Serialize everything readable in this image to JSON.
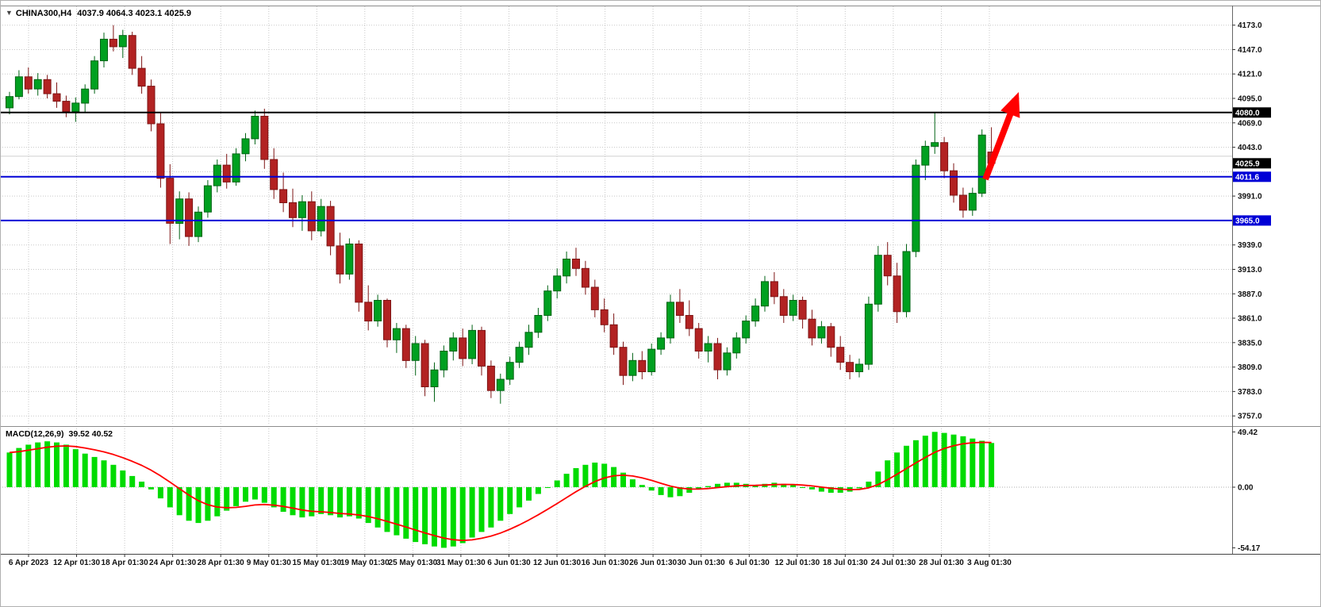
{
  "header": {
    "symbol_timeframe": "CHINA300,H4",
    "ohlc_text": "4037.9 4064.3 4023.1 4025.9"
  },
  "macd_header": {
    "name": "MACD(12,26,9)",
    "values": "39.52 40.52"
  },
  "chart_data": {
    "type": "candlestick",
    "symbol": "CHINA300",
    "timeframe": "H4",
    "title": "CHINA300,H4",
    "current_bar": {
      "open": 4037.9,
      "high": 4064.3,
      "low": 4023.1,
      "close": 4025.9
    },
    "price_axis": {
      "min": 3757.0,
      "max": 4173.0,
      "step": 26.0,
      "visible_labels": [
        [
          4173.0,
          "4173.0"
        ],
        [
          4147.0,
          "4147.0"
        ],
        [
          4121.0,
          "4121.0"
        ],
        [
          4095.0,
          "4095.0"
        ],
        [
          4069.0,
          "4069.0"
        ],
        [
          4043.0,
          "4043.0"
        ],
        [
          3991.0,
          "3991.0"
        ],
        [
          3939.0,
          "3939.0"
        ],
        [
          3913.0,
          "3913.0"
        ],
        [
          3887.0,
          "3887.0"
        ],
        [
          3861.0,
          "3861.0"
        ],
        [
          3835.0,
          "3835.0"
        ],
        [
          3809.0,
          "3809.0"
        ],
        [
          3783.0,
          "3783.0"
        ],
        [
          3757.0,
          "3757.0"
        ]
      ]
    },
    "time_labels": [
      "6 Apr 2023",
      "12 Apr 01:30",
      "18 Apr 01:30",
      "24 Apr 01:30",
      "28 Apr 01:30",
      "9 May 01:30",
      "15 May 01:30",
      "19 May 01:30",
      "25 May 01:30",
      "31 May 01:30",
      "6 Jun 01:30",
      "12 Jun 01:30",
      "16 Jun 01:30",
      "26 Jun 01:30",
      "30 Jun 01:30",
      "6 Jul 01:30",
      "12 Jul 01:30",
      "18 Jul 01:30",
      "24 Jul 01:30",
      "28 Jul 01:30",
      "3 Aug 01:30"
    ],
    "candles": [
      [
        4085,
        4102,
        4078,
        4097
      ],
      [
        4097,
        4125,
        4094,
        4118
      ],
      [
        4118,
        4128,
        4100,
        4105
      ],
      [
        4105,
        4122,
        4098,
        4115
      ],
      [
        4115,
        4120,
        4095,
        4100
      ],
      [
        4100,
        4112,
        4085,
        4092
      ],
      [
        4092,
        4098,
        4075,
        4081
      ],
      [
        4081,
        4096,
        4070,
        4090
      ],
      [
        4090,
        4110,
        4080,
        4105
      ],
      [
        4105,
        4140,
        4100,
        4135
      ],
      [
        4135,
        4165,
        4128,
        4158
      ],
      [
        4158,
        4173,
        4145,
        4150
      ],
      [
        4150,
        4168,
        4138,
        4162
      ],
      [
        4162,
        4166,
        4120,
        4127
      ],
      [
        4127,
        4140,
        4100,
        4108
      ],
      [
        4108,
        4115,
        4060,
        4068
      ],
      [
        4068,
        4080,
        4000,
        4010
      ],
      [
        4010,
        4025,
        3940,
        3962
      ],
      [
        3962,
        3996,
        3945,
        3988
      ],
      [
        3988,
        3995,
        3938,
        3948
      ],
      [
        3948,
        3980,
        3942,
        3974
      ],
      [
        3974,
        4008,
        3968,
        4002
      ],
      [
        4002,
        4030,
        3995,
        4024
      ],
      [
        4024,
        4036,
        3999,
        4006
      ],
      [
        4006,
        4042,
        4002,
        4036
      ],
      [
        4036,
        4058,
        4028,
        4052
      ],
      [
        4052,
        4082,
        4046,
        4076
      ],
      [
        4076,
        4084,
        4020,
        4030
      ],
      [
        4030,
        4042,
        3988,
        3998
      ],
      [
        3998,
        4016,
        3974,
        3984
      ],
      [
        3984,
        3999,
        3958,
        3968
      ],
      [
        3968,
        3992,
        3954,
        3985
      ],
      [
        3985,
        3996,
        3944,
        3954
      ],
      [
        3954,
        3988,
        3948,
        3980
      ],
      [
        3980,
        3986,
        3928,
        3938
      ],
      [
        3938,
        3952,
        3898,
        3908
      ],
      [
        3908,
        3946,
        3902,
        3940
      ],
      [
        3940,
        3944,
        3868,
        3878
      ],
      [
        3878,
        3896,
        3848,
        3858
      ],
      [
        3858,
        3886,
        3852,
        3880
      ],
      [
        3880,
        3882,
        3830,
        3838
      ],
      [
        3838,
        3856,
        3824,
        3850
      ],
      [
        3850,
        3854,
        3808,
        3816
      ],
      [
        3816,
        3842,
        3800,
        3834
      ],
      [
        3834,
        3838,
        3778,
        3788
      ],
      [
        3788,
        3814,
        3772,
        3806
      ],
      [
        3806,
        3832,
        3798,
        3826
      ],
      [
        3826,
        3846,
        3816,
        3840
      ],
      [
        3840,
        3850,
        3810,
        3818
      ],
      [
        3818,
        3854,
        3812,
        3848
      ],
      [
        3848,
        3852,
        3800,
        3810
      ],
      [
        3810,
        3816,
        3776,
        3784
      ],
      [
        3784,
        3802,
        3770,
        3796
      ],
      [
        3796,
        3820,
        3790,
        3814
      ],
      [
        3814,
        3836,
        3808,
        3830
      ],
      [
        3830,
        3854,
        3822,
        3846
      ],
      [
        3846,
        3872,
        3840,
        3864
      ],
      [
        3864,
        3896,
        3858,
        3890
      ],
      [
        3890,
        3914,
        3882,
        3906
      ],
      [
        3906,
        3932,
        3898,
        3924
      ],
      [
        3924,
        3936,
        3906,
        3914
      ],
      [
        3914,
        3922,
        3886,
        3894
      ],
      [
        3894,
        3902,
        3862,
        3870
      ],
      [
        3870,
        3882,
        3846,
        3854
      ],
      [
        3854,
        3866,
        3822,
        3830
      ],
      [
        3830,
        3836,
        3790,
        3800
      ],
      [
        3800,
        3824,
        3794,
        3816
      ],
      [
        3816,
        3826,
        3796,
        3804
      ],
      [
        3804,
        3834,
        3800,
        3828
      ],
      [
        3828,
        3846,
        3822,
        3840
      ],
      [
        3840,
        3886,
        3834,
        3878
      ],
      [
        3878,
        3892,
        3856,
        3864
      ],
      [
        3864,
        3880,
        3842,
        3850
      ],
      [
        3850,
        3856,
        3818,
        3826
      ],
      [
        3826,
        3842,
        3814,
        3834
      ],
      [
        3834,
        3840,
        3796,
        3806
      ],
      [
        3806,
        3830,
        3800,
        3824
      ],
      [
        3824,
        3846,
        3818,
        3840
      ],
      [
        3840,
        3864,
        3834,
        3858
      ],
      [
        3858,
        3882,
        3852,
        3874
      ],
      [
        3874,
        3906,
        3868,
        3900
      ],
      [
        3900,
        3910,
        3876,
        3884
      ],
      [
        3884,
        3892,
        3856,
        3864
      ],
      [
        3864,
        3886,
        3858,
        3880
      ],
      [
        3880,
        3884,
        3850,
        3860
      ],
      [
        3860,
        3870,
        3832,
        3840
      ],
      [
        3840,
        3858,
        3834,
        3852
      ],
      [
        3852,
        3856,
        3820,
        3830
      ],
      [
        3830,
        3842,
        3806,
        3814
      ],
      [
        3814,
        3822,
        3796,
        3804
      ],
      [
        3804,
        3818,
        3798,
        3812
      ],
      [
        3812,
        3884,
        3806,
        3876
      ],
      [
        3876,
        3938,
        3868,
        3928
      ],
      [
        3928,
        3942,
        3896,
        3906
      ],
      [
        3906,
        3920,
        3856,
        3868
      ],
      [
        3868,
        3940,
        3862,
        3932
      ],
      [
        3932,
        4030,
        3926,
        4024
      ],
      [
        4024,
        4050,
        4008,
        4044
      ],
      [
        4044,
        4080,
        4036,
        4048
      ],
      [
        4048,
        4054,
        4010,
        4018
      ],
      [
        4018,
        4026,
        3984,
        3992
      ],
      [
        3992,
        4000,
        3968,
        3976
      ],
      [
        3976,
        4000,
        3970,
        3994
      ],
      [
        3994,
        4062,
        3990,
        4056
      ],
      [
        4037.9,
        4064.3,
        4023.1,
        4025.9
      ]
    ],
    "horizontal_levels": [
      {
        "price": 4080.0,
        "tag": "4080.0",
        "color": "#000000",
        "width": 2,
        "tag_bg": "#000000"
      },
      {
        "price": 4011.6,
        "tag": "4011.6",
        "color": "#0000D6",
        "width": 2,
        "tag_bg": "#0000D6"
      },
      {
        "price": 3965.0,
        "tag": "3965.0",
        "color": "#0000D6",
        "width": 2,
        "tag_bg": "#0000D6"
      }
    ],
    "ask_line": {
      "price": 4033.4,
      "color": "#CFCFCF"
    },
    "current_price_tag": {
      "price": 4025.9,
      "text": "4025.9",
      "bg": "#000000"
    },
    "macd": {
      "params": "12,26,9",
      "value": 39.52,
      "signal_value": 40.52,
      "signal_ema_period": 9,
      "axis": {
        "max": 49.42,
        "zero": 0.0,
        "min": -54.17,
        "labels": [
          "49.42",
          "0.00",
          "-54.17"
        ]
      },
      "histogram": [
        31,
        35,
        38,
        40,
        41,
        40,
        38,
        34,
        30,
        27,
        24,
        20,
        15,
        10,
        5,
        -2,
        -10,
        -18,
        -25,
        -30,
        -32,
        -30,
        -26,
        -21,
        -17,
        -13,
        -11,
        -14,
        -18,
        -22,
        -25,
        -27,
        -26,
        -24,
        -25,
        -27,
        -26,
        -28,
        -32,
        -36,
        -40,
        -43,
        -46,
        -49,
        -51,
        -53,
        -54.17,
        -53,
        -50,
        -45,
        -40,
        -36,
        -30,
        -24,
        -18,
        -12,
        -6,
        0,
        6,
        12,
        17,
        20,
        22,
        21,
        18,
        13,
        7,
        2,
        -3,
        -7,
        -9,
        -8,
        -5,
        -2,
        1,
        3,
        4,
        4,
        3,
        2,
        3,
        4,
        3,
        2,
        0,
        -2,
        -4,
        -5,
        -5,
        -4,
        -1,
        5,
        14,
        24,
        31,
        37,
        42,
        46,
        49.42,
        48.5,
        47,
        45.5,
        43.5,
        41.5,
        39.52
      ]
    },
    "annotation_arrow": {
      "type": "up-arrow",
      "color": "#FF0000",
      "from_xy": [
        1242,
        226
      ],
      "to_xy": [
        1284,
        116
      ]
    },
    "colors": {
      "background": "#FFFFFF",
      "grid": "#C8C8C8",
      "up": "#00A020",
      "up_border": "#006314",
      "down": "#B22222",
      "down_border": "#7E1515",
      "hist": "#00DB00",
      "signal": "#FF0000"
    }
  }
}
